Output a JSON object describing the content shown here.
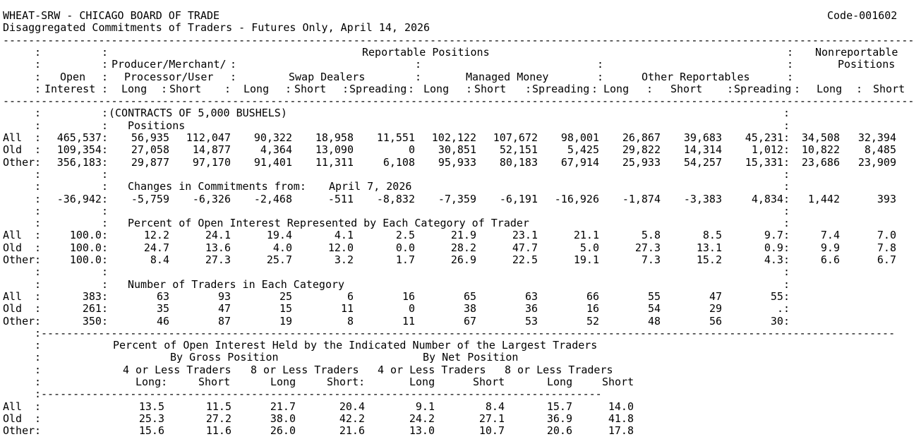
{
  "report": {
    "title": "WHEAT-SRW - CHICAGO BOARD OF TRADE",
    "code": "Code-001602",
    "subtitle": "Disaggregated Commitments of Traders - Futures Only, April 14, 2026",
    "header": {
      "reportable": "Reportable Positions",
      "nonreportable": "Nonreportable",
      "nonreportable2": "Positions",
      "producer_merchant": "Producer/Merchant/",
      "processor_user": "Processor/User",
      "open": "Open",
      "interest": "Interest",
      "swap_dealers": "Swap Dealers",
      "managed_money": "Managed Money",
      "other_reportables": "Other Reportables",
      "long": "Long",
      "short": "Short",
      "spreading": "Spreading"
    },
    "unit": "(CONTRACTS OF 5,000 BUSHELS)",
    "positions": {
      "label": "Positions",
      "rows": [
        {
          "label": "All",
          "values": [
            "465,537",
            "56,935",
            "112,047",
            "90,322",
            "18,958",
            "11,551",
            "102,122",
            "107,672",
            "98,001",
            "26,867",
            "39,683",
            "45,231",
            "34,508",
            "32,394"
          ]
        },
        {
          "label": "Old",
          "values": [
            "109,354",
            "27,058",
            "14,877",
            "4,364",
            "13,090",
            "0",
            "30,851",
            "52,151",
            "5,425",
            "29,822",
            "14,314",
            "1,012",
            "10,822",
            "8,485"
          ]
        },
        {
          "label": "Other",
          "values": [
            "356,183",
            "29,877",
            "97,170",
            "91,401",
            "11,311",
            "6,108",
            "95,933",
            "80,183",
            "67,914",
            "25,933",
            "54,257",
            "15,331",
            "23,686",
            "23,909"
          ]
        }
      ]
    },
    "changes": {
      "label": "Changes in Commitments from:",
      "date": "April 7, 2026",
      "rows": [
        {
          "label": "",
          "values": [
            "-36,942",
            "-5,759",
            "-6,326",
            "-2,468",
            "-511",
            "-8,832",
            "-7,359",
            "-6,191",
            "-16,926",
            "-1,874",
            "-3,383",
            "4,834",
            "1,442",
            "393"
          ]
        }
      ]
    },
    "percent": {
      "label": "Percent of Open Interest Represented by Each Category of Trader",
      "rows": [
        {
          "label": "All",
          "values": [
            "100.0",
            "12.2",
            "24.1",
            "19.4",
            "4.1",
            "2.5",
            "21.9",
            "23.1",
            "21.1",
            "5.8",
            "8.5",
            "9.7",
            "7.4",
            "7.0"
          ]
        },
        {
          "label": "Old",
          "values": [
            "100.0",
            "24.7",
            "13.6",
            "4.0",
            "12.0",
            "0.0",
            "28.2",
            "47.7",
            "5.0",
            "27.3",
            "13.1",
            "0.9",
            "9.9",
            "7.8"
          ]
        },
        {
          "label": "Other",
          "values": [
            "100.0",
            "8.4",
            "27.3",
            "25.7",
            "3.2",
            "1.7",
            "26.9",
            "22.5",
            "19.1",
            "7.3",
            "15.2",
            "4.3",
            "6.6",
            "6.7"
          ]
        }
      ]
    },
    "traders": {
      "label": "Number of Traders in Each Category",
      "rows": [
        {
          "label": "All",
          "values": [
            "383",
            "63",
            "93",
            "25",
            "6",
            "16",
            "65",
            "63",
            "66",
            "55",
            "47",
            "55",
            "",
            ""
          ]
        },
        {
          "label": "Old",
          "values": [
            "261",
            "35",
            "47",
            "15",
            "11",
            "0",
            "38",
            "36",
            "16",
            "54",
            "29",
            ".",
            "",
            ""
          ]
        },
        {
          "label": "Other",
          "values": [
            "350",
            "46",
            "87",
            "19",
            "8",
            "11",
            "67",
            "53",
            "52",
            "48",
            "56",
            "30",
            "",
            ""
          ]
        }
      ]
    },
    "concentration": {
      "label": "Percent of Open Interest Held by the Indicated Number of the Largest Traders",
      "gross": "By Gross Position",
      "net": "By Net Position",
      "groups": [
        "4 or Less Traders",
        "8 or Less Traders",
        "4 or Less Traders",
        "8 or Less Traders"
      ],
      "cols": [
        "Long:",
        "Short",
        "Long",
        "Short:",
        "Long",
        "Short",
        "Long",
        "Short"
      ],
      "rows": [
        {
          "label": "All",
          "values": [
            "13.5",
            "11.5",
            "21.7",
            "20.4",
            "9.1",
            "8.4",
            "15.7",
            "14.0"
          ]
        },
        {
          "label": "Old",
          "values": [
            "25.3",
            "27.2",
            "38.0",
            "42.2",
            "24.2",
            "27.1",
            "36.9",
            "41.8"
          ]
        },
        {
          "label": "Other",
          "values": [
            "15.6",
            "11.6",
            "26.0",
            "21.6",
            "13.0",
            "10.7",
            "20.6",
            "17.8"
          ]
        }
      ]
    }
  },
  "colors": {
    "background": "#ffffff",
    "text": "#000000"
  }
}
